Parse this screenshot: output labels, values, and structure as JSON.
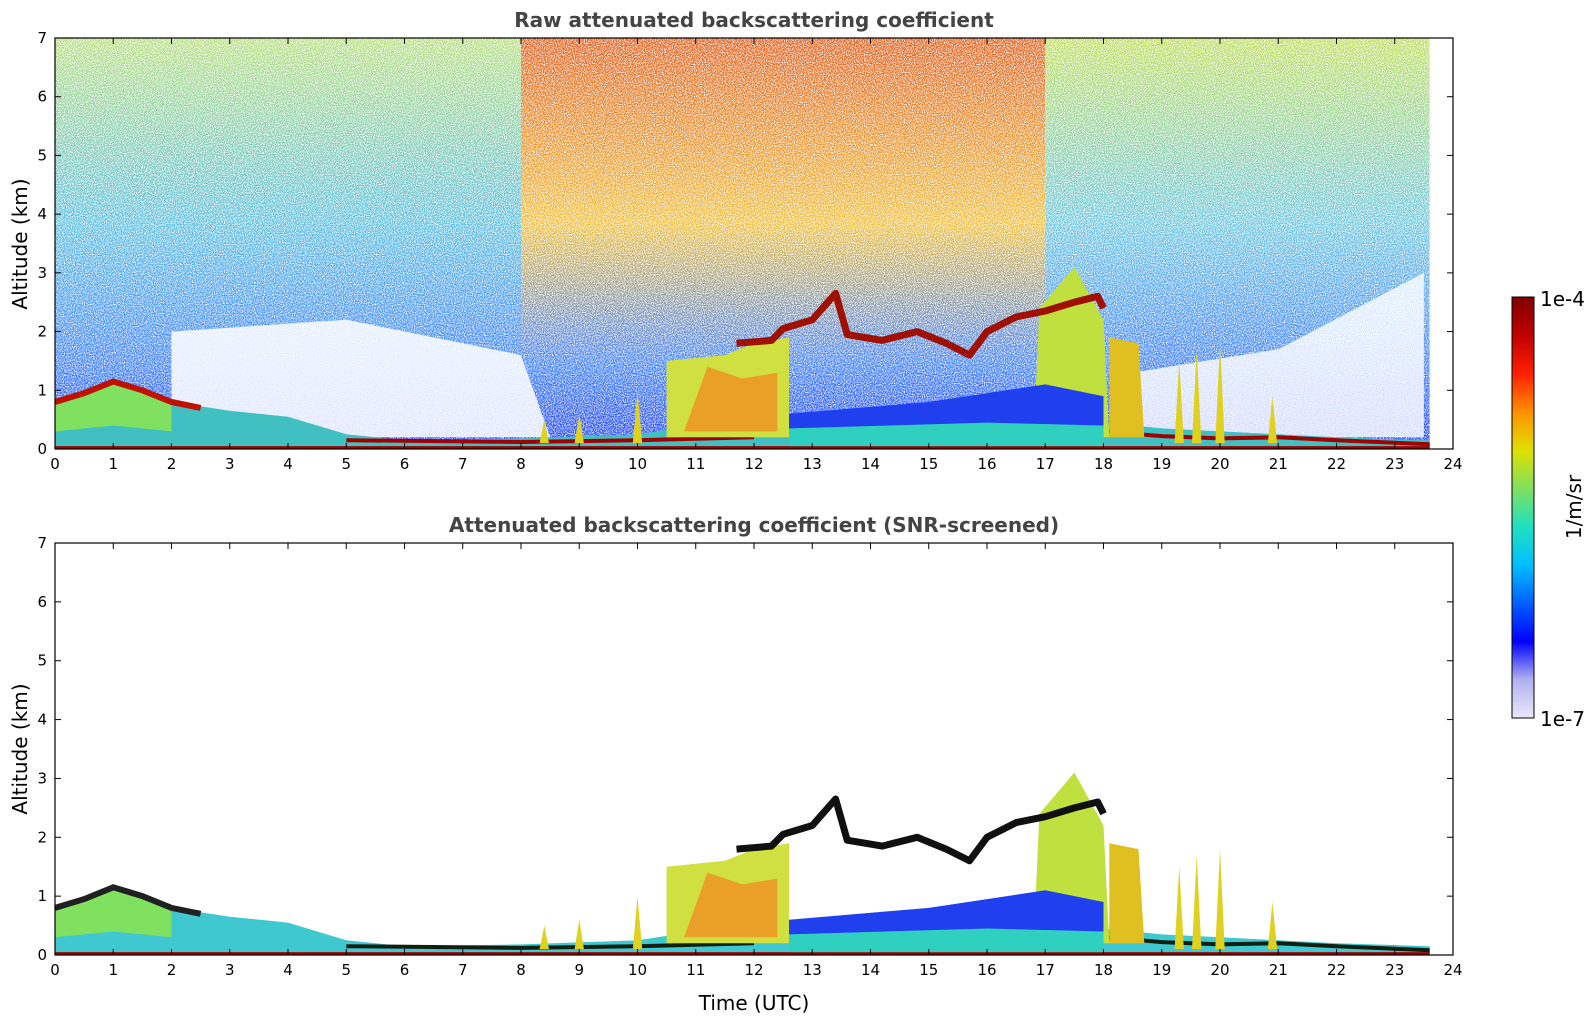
{
  "chart_data": [
    {
      "type": "heatmap",
      "title": "Raw attenuated backscattering coefficient",
      "xlabel": "",
      "ylabel": "Altitude (km)",
      "xlim": [
        0,
        24
      ],
      "ylim": [
        0,
        7
      ],
      "xticks": [
        "0",
        "1",
        "2",
        "3",
        "4",
        "5",
        "6",
        "7",
        "8",
        "9",
        "10",
        "11",
        "12",
        "13",
        "14",
        "15",
        "16",
        "17",
        "18",
        "19",
        "20",
        "21",
        "22",
        "23",
        "24"
      ],
      "yticks": [
        "0",
        "1",
        "2",
        "3",
        "4",
        "5",
        "6",
        "7"
      ],
      "features": {
        "boundary_layer_top_km": [
          [
            0,
            0.8
          ],
          [
            0.5,
            0.95
          ],
          [
            1,
            1.15
          ],
          [
            1.5,
            1.0
          ],
          [
            2,
            0.8
          ],
          [
            3,
            0.65
          ],
          [
            4,
            0.55
          ],
          [
            5,
            0.25
          ],
          [
            6,
            0.15
          ],
          [
            8,
            0.18
          ],
          [
            10,
            0.25
          ],
          [
            11,
            0.4
          ],
          [
            12,
            0.5
          ],
          [
            13,
            0.45
          ],
          [
            14,
            0.5
          ],
          [
            16,
            0.5
          ],
          [
            17,
            0.5
          ],
          [
            18,
            0.45
          ],
          [
            19,
            0.35
          ],
          [
            20,
            0.3
          ],
          [
            21,
            0.25
          ],
          [
            22,
            0.2
          ],
          [
            23.6,
            0.15
          ]
        ],
        "elevated_layer_km": [
          [
            11.7,
            1.8
          ],
          [
            12.3,
            1.85
          ],
          [
            12.5,
            2.05
          ],
          [
            13.0,
            2.2
          ],
          [
            13.4,
            2.65
          ],
          [
            13.6,
            1.95
          ],
          [
            14.2,
            1.85
          ],
          [
            14.8,
            2.0
          ],
          [
            15.3,
            1.8
          ],
          [
            15.7,
            1.6
          ],
          [
            16.0,
            2.0
          ],
          [
            16.5,
            2.25
          ],
          [
            17.0,
            2.35
          ],
          [
            17.5,
            2.5
          ],
          [
            17.9,
            2.6
          ],
          [
            18.0,
            2.4
          ]
        ]
      }
    },
    {
      "type": "heatmap",
      "title": "Attenuated backscattering coefficient (SNR-screened)",
      "xlabel": "Time (UTC)",
      "ylabel": "Altitude (km)",
      "xlim": [
        0,
        24
      ],
      "ylim": [
        0,
        7
      ],
      "xticks": [
        "0",
        "1",
        "2",
        "3",
        "4",
        "5",
        "6",
        "7",
        "8",
        "9",
        "10",
        "11",
        "12",
        "13",
        "14",
        "15",
        "16",
        "17",
        "18",
        "19",
        "20",
        "21",
        "22",
        "23",
        "24"
      ],
      "yticks": [
        "0",
        "1",
        "2",
        "3",
        "4",
        "5",
        "6",
        "7"
      ]
    }
  ],
  "colorbar": {
    "label": "1/m/sr",
    "max_label": "1e-4",
    "min_label": "1e-7",
    "scale": "log",
    "colormap": [
      "#e8e8f8",
      "#b0b0f0",
      "#0000ff",
      "#0060ff",
      "#00c0ff",
      "#20e0c0",
      "#80e060",
      "#e0e000",
      "#ff9000",
      "#ff2000",
      "#c00000",
      "#800000"
    ]
  }
}
